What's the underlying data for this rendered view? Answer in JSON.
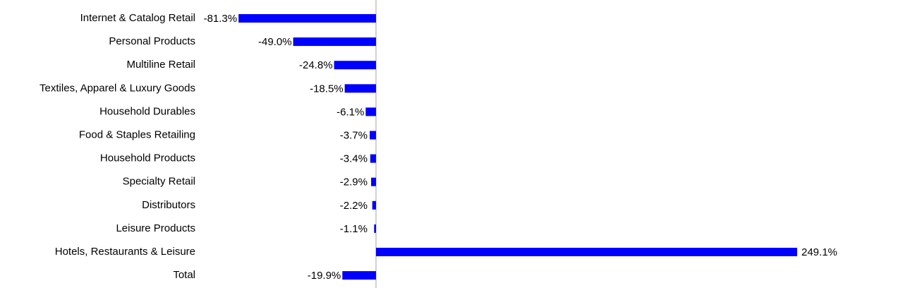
{
  "chart_data": {
    "type": "bar",
    "orientation": "horizontal",
    "color": "#0000ff",
    "categories": [
      "Internet & Catalog Retail",
      "Personal Products",
      "Multiline Retail",
      "Textiles, Apparel & Luxury Goods",
      "Household Durables",
      "Food & Staples Retailing",
      "Household Products",
      "Specialty Retail",
      "Distributors",
      "Leisure Products",
      "Hotels, Restaurants & Leisure",
      "Total"
    ],
    "values": [
      -81.3,
      -49.0,
      -24.8,
      -18.5,
      -6.1,
      -3.7,
      -3.4,
      -2.9,
      -2.2,
      -1.1,
      249.1,
      -19.9
    ],
    "value_labels": [
      "-81.3%",
      "-49.0%",
      "-24.8%",
      "-18.5%",
      "-6.1%",
      "-3.7%",
      "-3.4%",
      "-2.9%",
      "-2.2%",
      "-1.1%",
      "249.1%",
      "-19.9%"
    ],
    "xlim": [
      -100,
      300
    ]
  }
}
